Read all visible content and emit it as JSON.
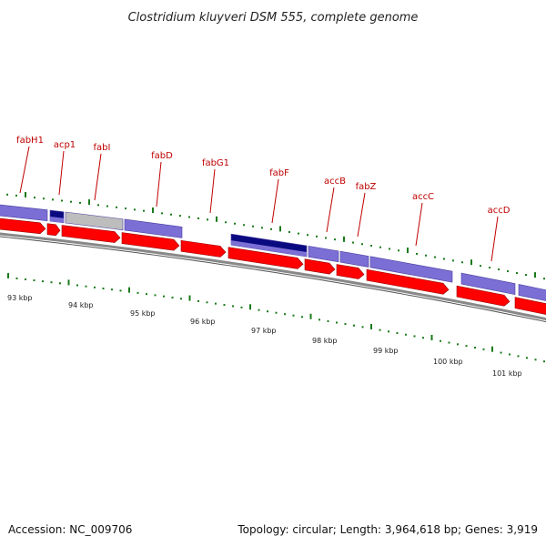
{
  "title": "Clostridium kluyveri DSM 555, complete genome",
  "footer": {
    "accession": "Accession: NC_009706",
    "summary": "Topology: circular; Length: 3,964,618 bp; Genes: 3,919"
  },
  "colors": {
    "gene_label": "#c00000",
    "forward_strand": "#ff0000",
    "feature_purple": "#7b6fd6",
    "feature_navy": "#0a0a80",
    "feature_gray": "#bdbdbd",
    "backbone": "#888888",
    "tick_green": "#1a7a1a"
  },
  "genes": [
    {
      "name": "fabH1"
    },
    {
      "name": "acp1"
    },
    {
      "name": "fabI"
    },
    {
      "name": "fabD"
    },
    {
      "name": "fabG1"
    },
    {
      "name": "fabF"
    },
    {
      "name": "accB"
    },
    {
      "name": "fabZ"
    },
    {
      "name": "accC"
    },
    {
      "name": "accD"
    }
  ],
  "scale_labels": [
    "93 kbp",
    "94 kbp",
    "95 kbp",
    "96 kbp",
    "97 kbp",
    "98 kbp",
    "99 kbp",
    "100 kbp",
    "101 kbp"
  ]
}
